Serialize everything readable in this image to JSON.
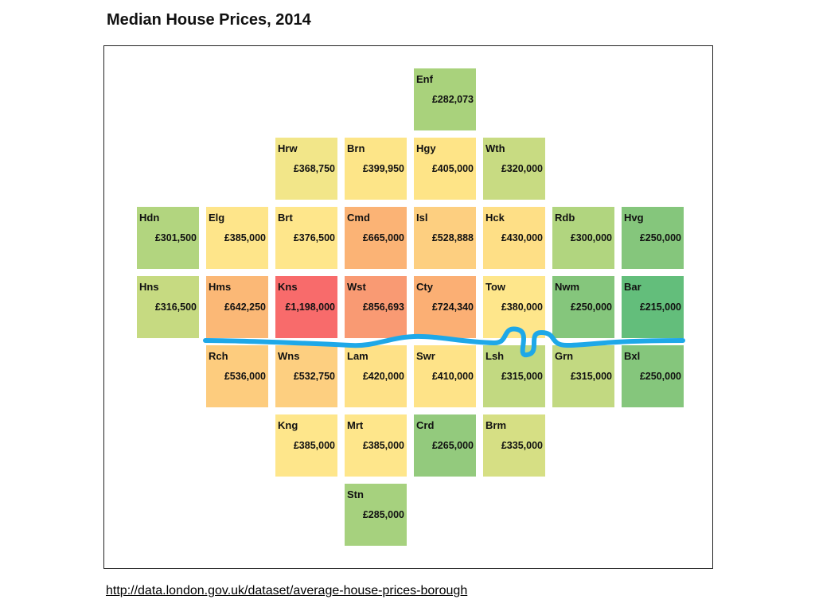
{
  "title": "Median House Prices, 2014",
  "source_link": "http://data.london.gov.uk/dataset/average-house-prices-borough",
  "colors": {
    "river": "#1ea8e8"
  },
  "chart_data": {
    "type": "heatmap",
    "title": "Median House Prices, 2014",
    "tiles": [
      {
        "code": "Enf",
        "price": "£282,073",
        "value": 282073,
        "col": 4,
        "row": 0,
        "color": "#a9d27c"
      },
      {
        "code": "Hrw",
        "price": "£368,750",
        "value": 368750,
        "col": 2,
        "row": 1,
        "color": "#f2e689"
      },
      {
        "code": "Brn",
        "price": "£399,950",
        "value": 399950,
        "col": 3,
        "row": 1,
        "color": "#fde588"
      },
      {
        "code": "Hgy",
        "price": "£405,000",
        "value": 405000,
        "col": 4,
        "row": 1,
        "color": "#fee487"
      },
      {
        "code": "Wth",
        "price": "£320,000",
        "value": 320000,
        "col": 5,
        "row": 1,
        "color": "#c8db82"
      },
      {
        "code": "Hdn",
        "price": "£301,500",
        "value": 301500,
        "col": 0,
        "row": 2,
        "color": "#b2d57f"
      },
      {
        "code": "Elg",
        "price": "£385,000",
        "value": 385000,
        "col": 1,
        "row": 2,
        "color": "#fee58a"
      },
      {
        "code": "Brt",
        "price": "£376,500",
        "value": 376500,
        "col": 2,
        "row": 2,
        "color": "#fee68b"
      },
      {
        "code": "Cmd",
        "price": "£665,000",
        "value": 665000,
        "col": 3,
        "row": 2,
        "color": "#fbb375"
      },
      {
        "code": "Isl",
        "price": "£528,888",
        "value": 528888,
        "col": 4,
        "row": 2,
        "color": "#fdcf80"
      },
      {
        "code": "Hck",
        "price": "£430,000",
        "value": 430000,
        "col": 5,
        "row": 2,
        "color": "#fedf86"
      },
      {
        "code": "Rdb",
        "price": "£300,000",
        "value": 300000,
        "col": 6,
        "row": 2,
        "color": "#b1d57f"
      },
      {
        "code": "Hvg",
        "price": "£250,000",
        "value": 250000,
        "col": 7,
        "row": 2,
        "color": "#85c67c"
      },
      {
        "code": "Hns",
        "price": "£316,500",
        "value": 316500,
        "col": 0,
        "row": 3,
        "color": "#c6da81"
      },
      {
        "code": "Hms",
        "price": "£642,250",
        "value": 642250,
        "col": 1,
        "row": 3,
        "color": "#fbb876"
      },
      {
        "code": "Kns",
        "price": "£1,198,000",
        "value": 1198000,
        "col": 2,
        "row": 3,
        "color": "#f86b6b"
      },
      {
        "code": "Wst",
        "price": "£856,693",
        "value": 856693,
        "col": 3,
        "row": 3,
        "color": "#f99a73"
      },
      {
        "code": "Cty",
        "price": "£724,340",
        "value": 724340,
        "col": 4,
        "row": 3,
        "color": "#fbaf74"
      },
      {
        "code": "Tow",
        "price": "£380,000",
        "value": 380000,
        "col": 5,
        "row": 3,
        "color": "#fee68b"
      },
      {
        "code": "Nwm",
        "price": "£250,000",
        "value": 250000,
        "col": 6,
        "row": 3,
        "color": "#85c67c"
      },
      {
        "code": "Bar",
        "price": "£215,000",
        "value": 215000,
        "col": 7,
        "row": 3,
        "color": "#63be7b"
      },
      {
        "code": "Rch",
        "price": "£536,000",
        "value": 536000,
        "col": 1,
        "row": 4,
        "color": "#fdcc7e"
      },
      {
        "code": "Wns",
        "price": "£532,750",
        "value": 532750,
        "col": 2,
        "row": 4,
        "color": "#fdcf80"
      },
      {
        "code": "Lam",
        "price": "£420,000",
        "value": 420000,
        "col": 3,
        "row": 4,
        "color": "#fee187"
      },
      {
        "code": "Swr",
        "price": "£410,000",
        "value": 410000,
        "col": 4,
        "row": 4,
        "color": "#fee388"
      },
      {
        "code": "Lsh",
        "price": "£315,000",
        "value": 315000,
        "col": 5,
        "row": 4,
        "color": "#c2d981"
      },
      {
        "code": "Grn",
        "price": "£315,000",
        "value": 315000,
        "col": 6,
        "row": 4,
        "color": "#c2d981"
      },
      {
        "code": "Bxl",
        "price": "£250,000",
        "value": 250000,
        "col": 7,
        "row": 4,
        "color": "#85c67c"
      },
      {
        "code": "Kng",
        "price": "£385,000",
        "value": 385000,
        "col": 2,
        "row": 5,
        "color": "#fee68b"
      },
      {
        "code": "Mrt",
        "price": "£385,000",
        "value": 385000,
        "col": 3,
        "row": 5,
        "color": "#fee68b"
      },
      {
        "code": "Crd",
        "price": "£265,000",
        "value": 265000,
        "col": 4,
        "row": 5,
        "color": "#93ca7d"
      },
      {
        "code": "Brm",
        "price": "£335,000",
        "value": 335000,
        "col": 5,
        "row": 5,
        "color": "#d6df84"
      },
      {
        "code": "Stn",
        "price": "£285,000",
        "value": 285000,
        "col": 3,
        "row": 6,
        "color": "#a6d17e"
      }
    ]
  }
}
